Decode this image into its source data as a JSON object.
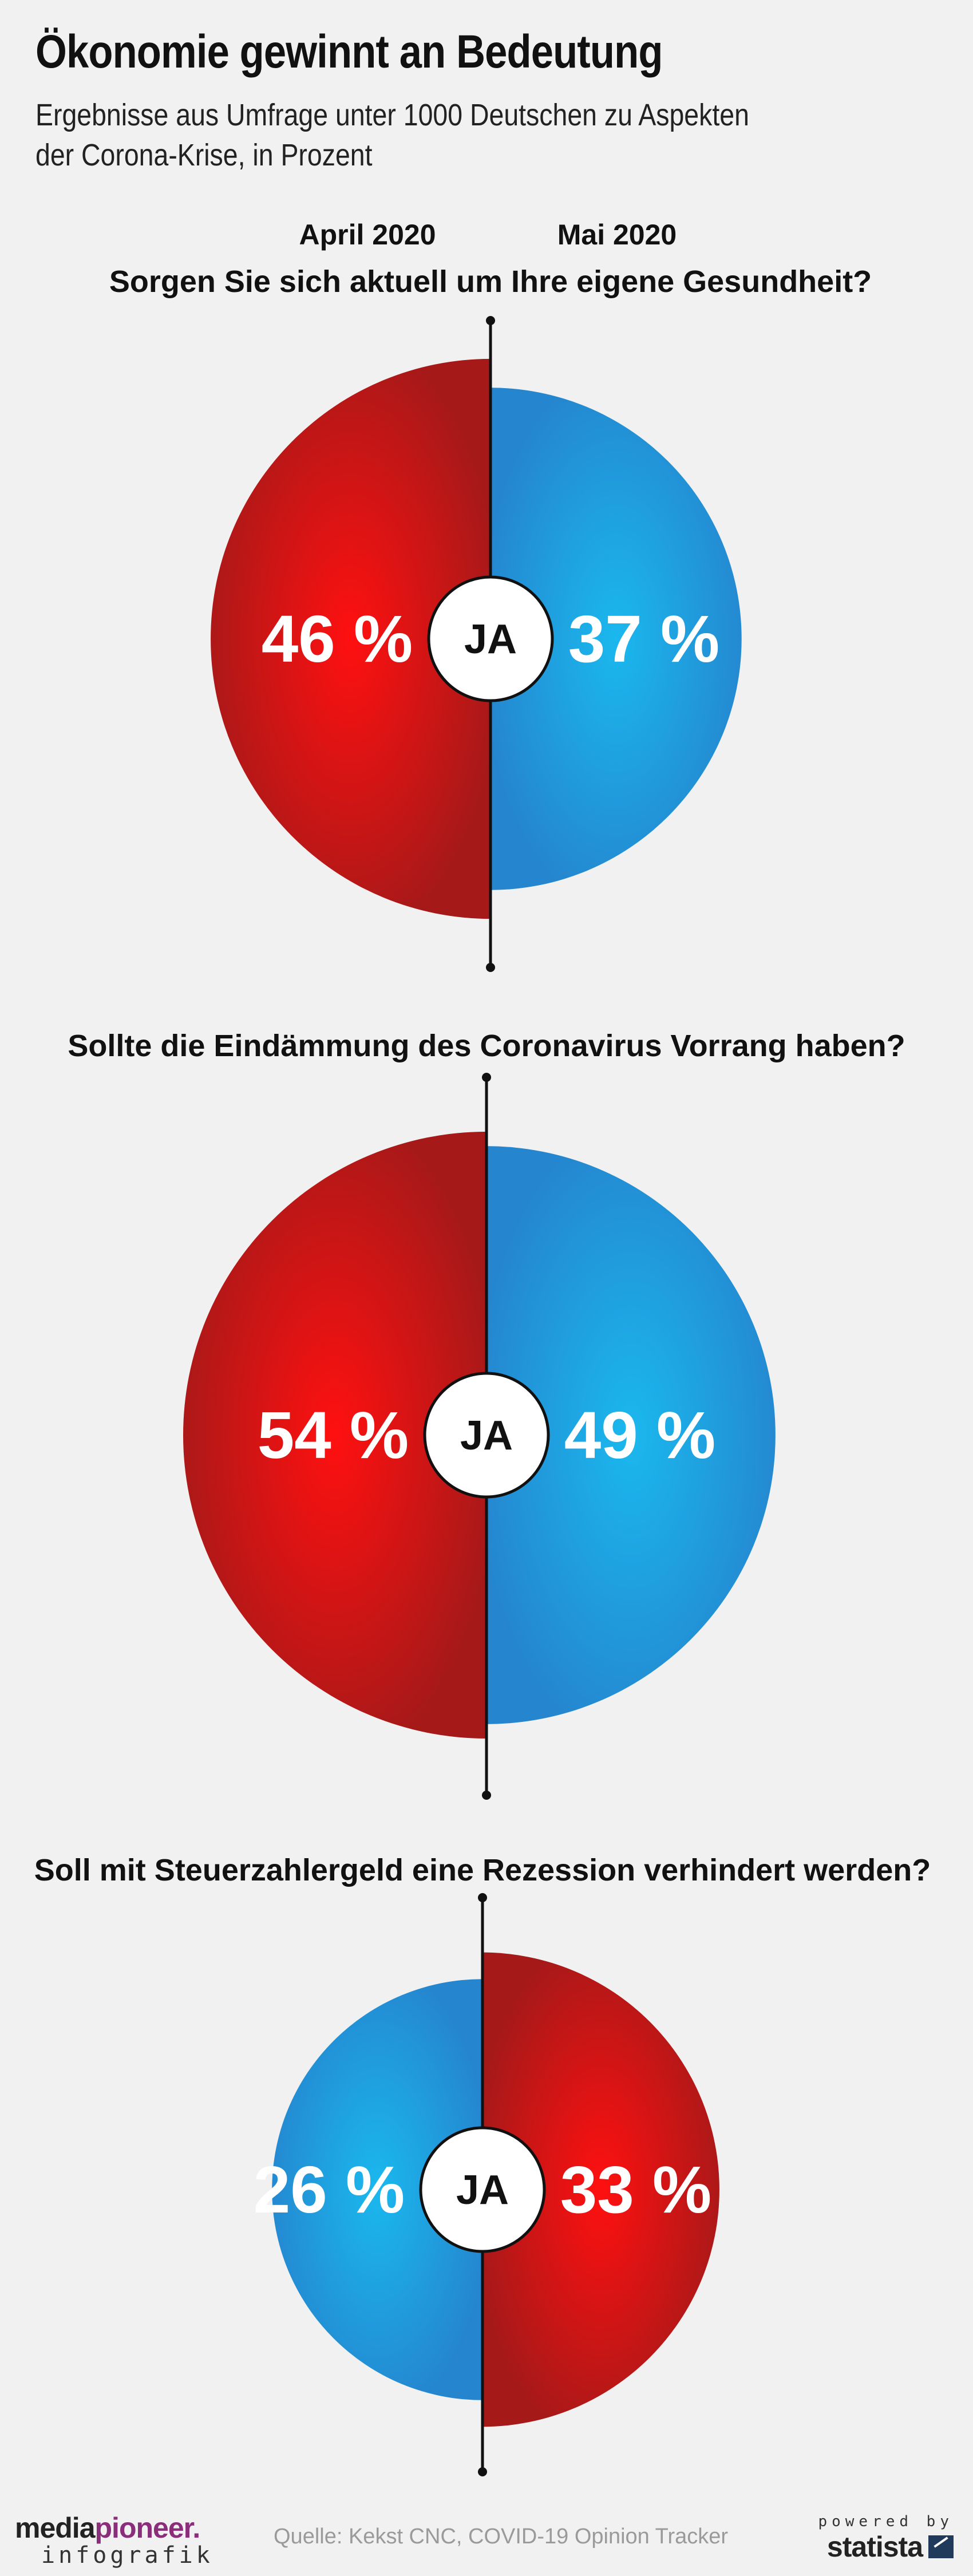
{
  "title": "Ökonomie gewinnt an Bedeutung",
  "subtitle_lines": [
    "Ergebnisse aus Umfrage unter 1000 Deutschen zu Aspekten",
    "der Corona-Krise, in Prozent"
  ],
  "legend": {
    "left": "April 2020",
    "right": "Mai 2020"
  },
  "colors": {
    "red_center": "#ff1010",
    "red_edge": "#a51919",
    "blue_center": "#1ab8ee",
    "blue_edge": "#2585cf"
  },
  "chart_data": {
    "type": "pie",
    "center_label": "JA",
    "groups": [
      {
        "question": "Sorgen Sie sich aktuell um Ihre eigene Gesundheit?",
        "left": {
          "period": "April 2020",
          "value": 46,
          "color": "red"
        },
        "right": {
          "period": "Mai 2020",
          "value": 37,
          "color": "blue"
        }
      },
      {
        "question": "Sollte die Eindämmung des Coronavirus Vorrang haben?",
        "left": {
          "period": "April 2020",
          "value": 54,
          "color": "red"
        },
        "right": {
          "period": "Mai 2020",
          "value": 49,
          "color": "blue"
        }
      },
      {
        "question": "Soll mit Steuerzahlergeld eine Rezession verhindert werden?",
        "left": {
          "period": "April 2020",
          "value": 26,
          "color": "blue"
        },
        "right": {
          "period": "Mai 2020",
          "value": 33,
          "color": "red"
        }
      }
    ]
  },
  "footer": {
    "brand_main": "media",
    "brand_accent": "pioneer.",
    "brand_sub": "infografik",
    "source": "Quelle: Kekst CNC, COVID-19 Opinion Tracker",
    "powered_by": "powered by",
    "powered_brand": "statista"
  }
}
